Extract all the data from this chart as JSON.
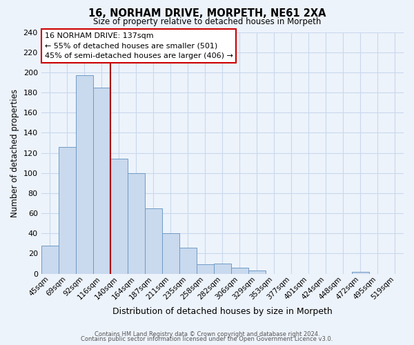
{
  "title": "16, NORHAM DRIVE, MORPETH, NE61 2XA",
  "subtitle": "Size of property relative to detached houses in Morpeth",
  "xlabel": "Distribution of detached houses by size in Morpeth",
  "ylabel": "Number of detached properties",
  "bar_labels": [
    "45sqm",
    "69sqm",
    "92sqm",
    "116sqm",
    "140sqm",
    "164sqm",
    "187sqm",
    "211sqm",
    "235sqm",
    "258sqm",
    "282sqm",
    "306sqm",
    "329sqm",
    "353sqm",
    "377sqm",
    "401sqm",
    "424sqm",
    "448sqm",
    "472sqm",
    "495sqm",
    "519sqm"
  ],
  "bar_values": [
    28,
    126,
    197,
    185,
    114,
    100,
    65,
    40,
    26,
    9,
    10,
    6,
    3,
    0,
    0,
    0,
    0,
    0,
    2,
    0,
    0
  ],
  "bar_fill_color": "#c9d9ee",
  "bar_edge_color": "#6e9bc5",
  "vline_color": "#aa0000",
  "vline_x_index": 3,
  "ylim": [
    0,
    240
  ],
  "yticks": [
    0,
    20,
    40,
    60,
    80,
    100,
    120,
    140,
    160,
    180,
    200,
    220,
    240
  ],
  "annotation_title": "16 NORHAM DRIVE: 137sqm",
  "annotation_line1": "← 55% of detached houses are smaller (501)",
  "annotation_line2": "45% of semi-detached houses are larger (406) →",
  "annotation_box_color": "#ffffff",
  "annotation_box_edge": "#cc0000",
  "footer1": "Contains HM Land Registry data © Crown copyright and database right 2024.",
  "footer2": "Contains public sector information licensed under the Open Government Licence v3.0.",
  "bg_top": "#dde8f5",
  "bg_bottom": "#edf3fb",
  "grid_color": "#c8d8ec"
}
